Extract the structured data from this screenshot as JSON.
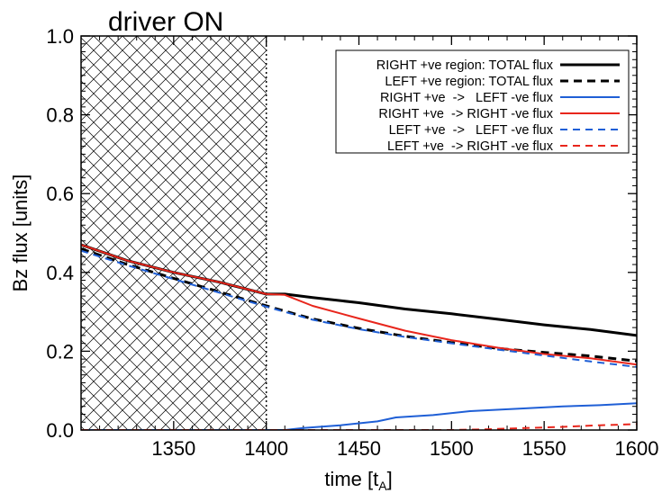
{
  "chart_data": {
    "type": "line",
    "title": "driver ON",
    "xlabel": "time [t",
    "xlabel_sub": "A",
    "xlabel_close": "]",
    "ylabel": "Bz flux [units]",
    "xlim": [
      1300,
      1600
    ],
    "ylim": [
      0.0,
      1.0
    ],
    "xticks": [
      1350,
      1400,
      1450,
      1500,
      1550,
      1600
    ],
    "xtick_labels": [
      "1350",
      "1400",
      "1450",
      "1500",
      "1550",
      "1600"
    ],
    "yticks": [
      0.0,
      0.2,
      0.4,
      0.6,
      0.8,
      1.0
    ],
    "ytick_labels": [
      "0.0",
      "0.2",
      "0.4",
      "0.6",
      "0.8",
      "1.0"
    ],
    "shaded_region": {
      "x_start": 1300,
      "x_end": 1400,
      "pattern": "crosshatch"
    },
    "vline": {
      "x": 1400,
      "style": "dotted"
    },
    "legend_position": "top-right",
    "series": [
      {
        "name": "RIGHT +ve region: TOTAL flux",
        "color": "#000000",
        "dash": "solid",
        "width": 3,
        "x": [
          1300,
          1325,
          1350,
          1375,
          1400,
          1410,
          1425,
          1450,
          1475,
          1500,
          1525,
          1550,
          1575,
          1600
        ],
        "y": [
          0.47,
          0.43,
          0.4,
          0.375,
          0.345,
          0.345,
          0.336,
          0.323,
          0.307,
          0.295,
          0.281,
          0.267,
          0.255,
          0.24
        ]
      },
      {
        "name": "LEFT +ve region: TOTAL flux",
        "color": "#000000",
        "dash": "dashed",
        "width": 3,
        "x": [
          1300,
          1325,
          1350,
          1375,
          1400,
          1425,
          1450,
          1475,
          1500,
          1525,
          1550,
          1575,
          1600
        ],
        "y": [
          0.46,
          0.42,
          0.385,
          0.35,
          0.315,
          0.282,
          0.258,
          0.238,
          0.222,
          0.207,
          0.197,
          0.188,
          0.175
        ]
      },
      {
        "name": "RIGHT +ve -> LEFT -ve flux",
        "color": "#1f5fd6",
        "dash": "solid",
        "width": 2,
        "x": [
          1300,
          1350,
          1400,
          1410,
          1420,
          1440,
          1460,
          1470,
          1490,
          1510,
          1540,
          1560,
          1580,
          1600
        ],
        "y": [
          0.0,
          0.0,
          0.0,
          0.0,
          0.005,
          0.012,
          0.022,
          0.032,
          0.038,
          0.048,
          0.055,
          0.06,
          0.063,
          0.068
        ]
      },
      {
        "name": "RIGHT +ve -> RIGHT -ve flux",
        "color": "#e8261c",
        "dash": "solid",
        "width": 2,
        "x": [
          1300,
          1325,
          1350,
          1375,
          1400,
          1410,
          1425,
          1450,
          1475,
          1500,
          1525,
          1550,
          1575,
          1600
        ],
        "y": [
          0.47,
          0.43,
          0.4,
          0.375,
          0.345,
          0.343,
          0.315,
          0.283,
          0.252,
          0.228,
          0.209,
          0.193,
          0.182,
          0.166
        ]
      },
      {
        "name": "LEFT +ve -> LEFT -ve flux",
        "color": "#1f5fd6",
        "dash": "dashed",
        "width": 2,
        "x": [
          1300,
          1325,
          1350,
          1375,
          1400,
          1425,
          1450,
          1475,
          1500,
          1525,
          1550,
          1575,
          1600
        ],
        "y": [
          0.455,
          0.418,
          0.383,
          0.348,
          0.313,
          0.28,
          0.256,
          0.236,
          0.22,
          0.204,
          0.189,
          0.174,
          0.16
        ]
      },
      {
        "name": "LEFT +ve -> RIGHT -ve flux",
        "color": "#e8261c",
        "dash": "dashed",
        "width": 2,
        "x": [
          1300,
          1400,
          1460,
          1500,
          1520,
          1540,
          1560,
          1580,
          1600
        ],
        "y": [
          0.0,
          0.0,
          0.0,
          0.0,
          0.002,
          0.005,
          0.008,
          0.012,
          0.015
        ]
      }
    ],
    "legend_labels": [
      "RIGHT +ve region: TOTAL flux",
      "LEFT +ve region: TOTAL flux",
      "RIGHT +ve  ->   LEFT -ve flux",
      "RIGHT +ve  -> RIGHT -ve flux",
      "LEFT +ve  ->   LEFT -ve flux",
      "LEFT +ve  -> RIGHT -ve flux"
    ]
  }
}
